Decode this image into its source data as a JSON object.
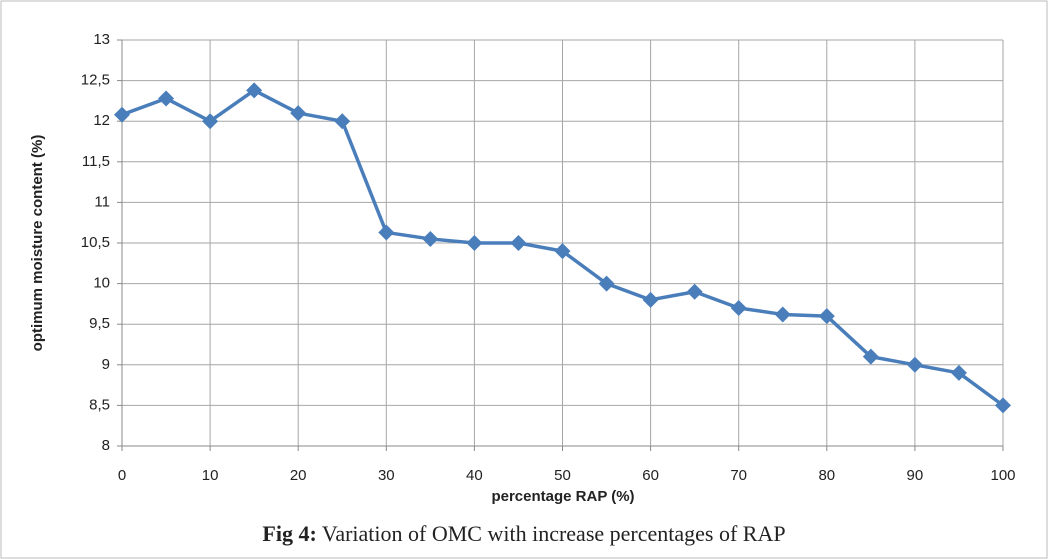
{
  "chart_data": {
    "type": "line",
    "x_label": "percentage RAP (%)",
    "y_label": "optimum moisture content (%)",
    "caption": {
      "label": "Fig 4:",
      "text": "Variation of OMC with increase percentages of RAP"
    },
    "x": [
      0,
      5,
      10,
      15,
      20,
      25,
      30,
      35,
      40,
      45,
      50,
      55,
      60,
      65,
      70,
      75,
      80,
      85,
      90,
      95,
      100
    ],
    "series": [
      {
        "name": "OMC",
        "color": "#4a7ebb",
        "values": [
          12.08,
          12.28,
          12.0,
          12.38,
          12.1,
          12.0,
          10.63,
          10.55,
          10.5,
          10.5,
          10.4,
          10.0,
          9.8,
          9.9,
          9.7,
          9.62,
          9.6,
          9.1,
          9.0,
          8.9,
          8.5
        ]
      }
    ],
    "xlim": [
      0,
      100
    ],
    "xticks": [
      0,
      10,
      20,
      30,
      40,
      50,
      60,
      70,
      80,
      90,
      100
    ],
    "ylim": [
      8,
      13
    ],
    "yticks": [
      8,
      {
        "value": 8.5,
        "label": "8,5"
      },
      9,
      {
        "value": 9.5,
        "label": "9,5"
      },
      10,
      {
        "value": 10.5,
        "label": "10,5"
      },
      11,
      {
        "value": 11.5,
        "label": "11,5"
      },
      12,
      {
        "value": 12.5,
        "label": "12,5"
      },
      13
    ],
    "grid": true
  }
}
